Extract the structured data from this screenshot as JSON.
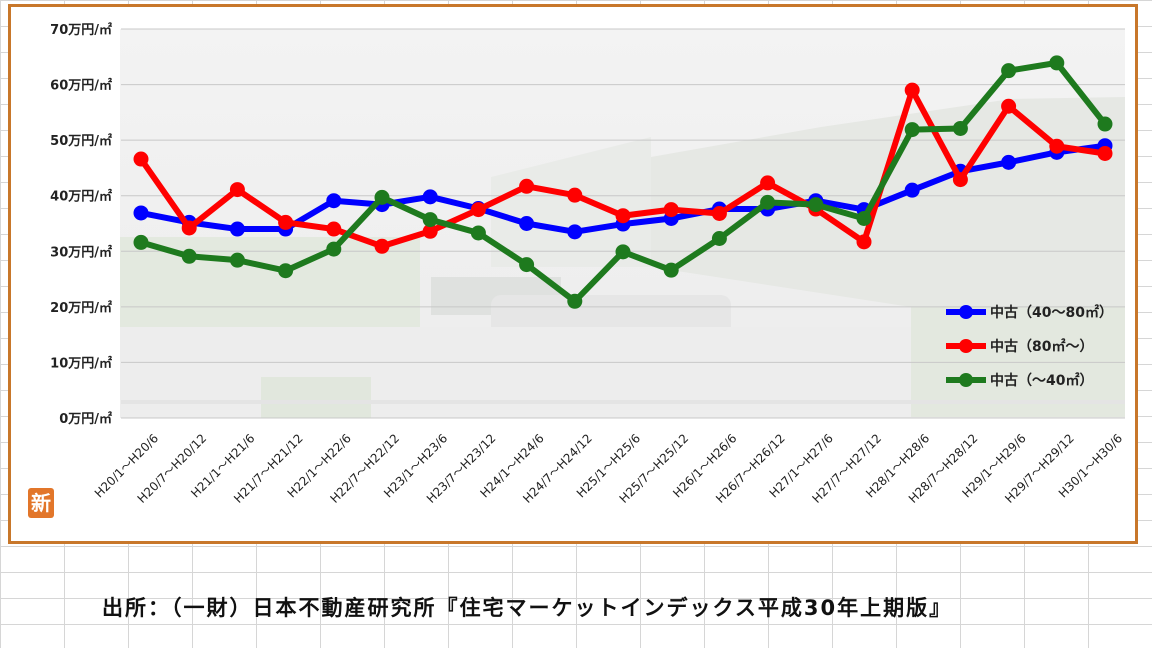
{
  "chart_data": {
    "type": "line",
    "categories": [
      "H20/1～H20/6",
      "H20/7～H20/12",
      "H21/1～H21/6",
      "H21/7～H21/12",
      "H22/1～H22/6",
      "H22/7～H22/12",
      "H23/1～H23/6",
      "H23/7～H23/12",
      "H24/1～H24/6",
      "H24/7～H24/12",
      "H25/1～H25/6",
      "H25/7～H25/12",
      "H26/1～H26/6",
      "H26/7～H26/12",
      "H27/1～H27/6",
      "H27/7～H27/12",
      "H28/1～H28/6",
      "H28/7～H28/12",
      "H29/1～H29/6",
      "H29/7～H29/12",
      "H30/1～H30/6"
    ],
    "series": [
      {
        "name": "中古（40～80㎡）",
        "color": "#0000ff",
        "values": [
          36.9,
          35.2,
          34.0,
          34.0,
          39.1,
          38.4,
          39.8,
          37.7,
          35.0,
          33.5,
          34.9,
          35.9,
          37.6,
          37.6,
          39.1,
          37.5,
          41.0,
          44.4,
          46.0,
          47.8,
          49.0
        ]
      },
      {
        "name": "中古（80㎡～）",
        "color": "#ff0000",
        "values": [
          46.6,
          34.2,
          41.1,
          35.2,
          34.0,
          30.9,
          33.6,
          37.5,
          41.7,
          40.1,
          36.4,
          37.5,
          36.8,
          42.3,
          37.6,
          31.7,
          59.0,
          42.9,
          56.1,
          48.9,
          47.6
        ]
      },
      {
        "name": "中古（～40㎡）",
        "color": "#1e7a1e",
        "values": [
          31.6,
          29.1,
          28.4,
          26.5,
          30.4,
          39.7,
          35.7,
          33.3,
          27.6,
          21.0,
          29.9,
          26.6,
          32.3,
          38.8,
          38.4,
          35.9,
          51.9,
          52.1,
          62.5,
          63.9,
          52.9
        ]
      }
    ],
    "yticks": [
      "0万円/㎡",
      "10万円/㎡",
      "20万円/㎡",
      "30万円/㎡",
      "40万円/㎡",
      "50万円/㎡",
      "60万円/㎡",
      "70万円/㎡"
    ],
    "ylim": [
      0,
      70
    ],
    "grid": true,
    "legend_position": "bottom-right"
  },
  "badge_text": "新",
  "source_note": "出所：（一財）日本不動産研究所『住宅マーケットインデックス平成30年上期版』"
}
